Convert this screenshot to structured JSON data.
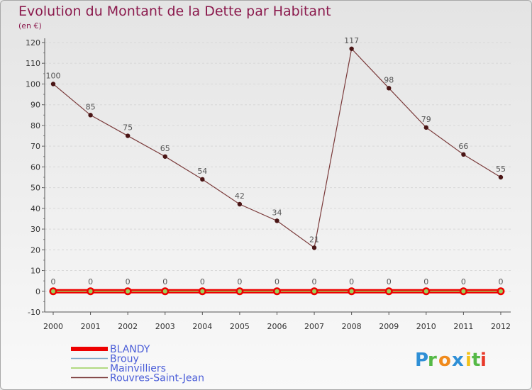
{
  "chart_data": {
    "type": "line",
    "title": "Evolution du Montant de la Dette par Habitant",
    "subtitle": "(en €)",
    "x": [
      "2000",
      "2001",
      "2002",
      "2003",
      "2004",
      "2005",
      "2006",
      "2007",
      "2008",
      "2009",
      "2010",
      "2011",
      "2012"
    ],
    "ylim": [
      -10,
      120
    ],
    "yticks": [
      -10,
      0,
      10,
      20,
      30,
      40,
      50,
      60,
      70,
      80,
      90,
      100,
      110,
      120
    ],
    "series": [
      {
        "name": "BLANDY",
        "color": "#ee0000",
        "values": [
          0,
          0,
          0,
          0,
          0,
          0,
          0,
          0,
          0,
          0,
          0,
          0,
          0
        ]
      },
      {
        "name": "Brouy",
        "color": "#7fa6c8",
        "values": [
          0,
          0,
          0,
          0,
          0,
          0,
          0,
          0,
          0,
          0,
          0,
          0,
          0
        ]
      },
      {
        "name": "Mainvilliers",
        "color": "#9ad05a",
        "values": [
          0,
          0,
          0,
          0,
          0,
          0,
          0,
          0,
          0,
          0,
          0,
          0,
          0
        ]
      },
      {
        "name": "Rouvres-Saint-Jean",
        "color": "#7a3a3a",
        "values": [
          100,
          85,
          75,
          65,
          54,
          42,
          34,
          21,
          117,
          98,
          79,
          66,
          55
        ]
      }
    ],
    "zero_labels": [
      "0",
      "0",
      "0",
      "0",
      "0",
      "0",
      "0",
      "0",
      "0",
      "0",
      "0",
      "0",
      "0"
    ],
    "logo": "Proxiti"
  }
}
